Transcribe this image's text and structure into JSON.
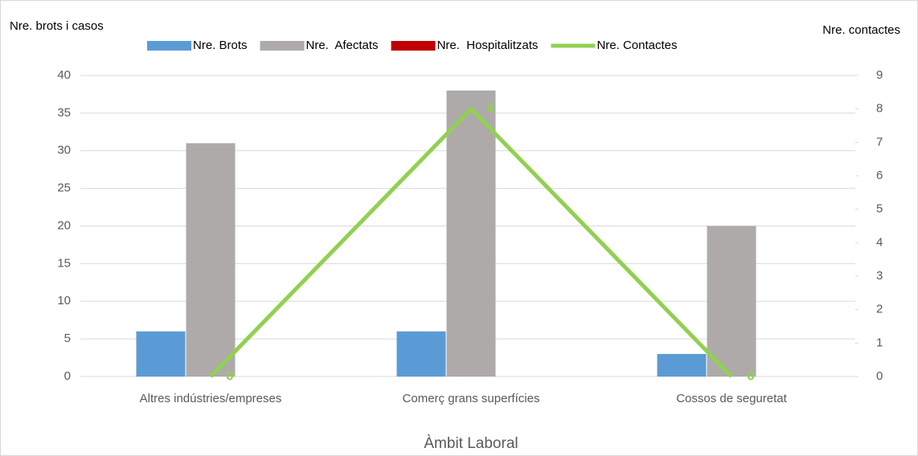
{
  "chart_data": {
    "type": "bar_line",
    "x_label": "Àmbit Laboral",
    "y_label": "Nre. brots i casos",
    "y2_label": "Nre. contactes",
    "categories": [
      "Altres indústries/empreses",
      "Comerç grans superfícies",
      "Cossos de seguretat"
    ],
    "series": [
      {
        "name": "Nre. Brots",
        "color": "#5b9bd5",
        "type": "bar",
        "values": [
          6,
          6,
          3
        ]
      },
      {
        "name": "Nre.  Afectats",
        "color": "#aeaaaa",
        "type": "bar",
        "values": [
          31,
          38,
          20
        ]
      },
      {
        "name": "Nre.  Hospitalitzats",
        "color": "#c00000",
        "type": "bar",
        "values": [
          0,
          0,
          0
        ]
      },
      {
        "name": "Nre. Contactes",
        "color": "#92d050",
        "type": "line",
        "axis": "y2",
        "values": [
          0,
          8,
          0
        ]
      }
    ],
    "ylim": [
      0,
      40
    ],
    "yticks": [
      0,
      5,
      10,
      15,
      20,
      25,
      30,
      35,
      40
    ],
    "y2lim": [
      0,
      9
    ],
    "y2ticks": [
      0,
      1,
      2,
      3,
      4,
      5,
      6,
      7,
      8,
      9
    ],
    "grid": true,
    "legend": "top"
  }
}
